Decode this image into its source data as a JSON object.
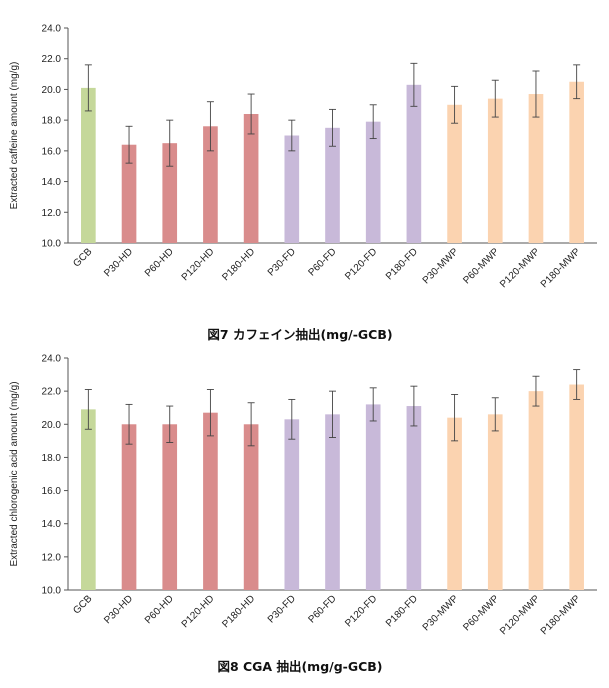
{
  "chart_data": [
    {
      "type": "bar",
      "caption": "図7 カフェイン抽出(mg/-GCB)",
      "ylabel": "Extracted caffeine amount (mg/g)",
      "ylim": [
        10,
        24
      ],
      "yticks": [
        "10.0",
        "12.0",
        "14.0",
        "16.0",
        "18.0",
        "20.0",
        "22.0",
        "24.0"
      ],
      "grid": false,
      "categories": [
        "GCB",
        "P30-HD",
        "P60-HD",
        "P120-HD",
        "P180-HD",
        "P30-FD",
        "P60-FD",
        "P120-FD",
        "P180-FD",
        "P30-MWP",
        "P60-MWP",
        "P120-MWP",
        "P180-MWP"
      ],
      "values": [
        20.1,
        16.4,
        16.5,
        17.6,
        18.4,
        17.0,
        17.5,
        17.9,
        20.3,
        19.0,
        19.4,
        19.7,
        20.5
      ],
      "errors": [
        1.5,
        1.2,
        1.5,
        1.6,
        1.3,
        1.0,
        1.2,
        1.1,
        1.4,
        1.2,
        1.2,
        1.5,
        1.1
      ],
      "colors": [
        "#c5d89a",
        "#d98c8c",
        "#d98c8c",
        "#d98c8c",
        "#d98c8c",
        "#c8b9d9",
        "#c8b9d9",
        "#c8b9d9",
        "#c8b9d9",
        "#fbd3b0",
        "#fbd3b0",
        "#fbd3b0",
        "#fbd3b0"
      ]
    },
    {
      "type": "bar",
      "caption": "図8 CGA 抽出(mg/g-GCB)",
      "ylabel": "Extracted chlorogenic acid amount (mg/g)",
      "ylim": [
        10,
        24
      ],
      "yticks": [
        "10.0",
        "12.0",
        "14.0",
        "16.0",
        "18.0",
        "20.0",
        "22.0",
        "24.0"
      ],
      "grid": false,
      "categories": [
        "GCB",
        "P30-HD",
        "P60-HD",
        "P120-HD",
        "P180-HD",
        "P30-FD",
        "P60-FD",
        "P120-FD",
        "P180-FD",
        "P30-MWP",
        "P60-MWP",
        "P120-MWP",
        "P180-MWP"
      ],
      "values": [
        20.9,
        20.0,
        20.0,
        20.7,
        20.0,
        20.3,
        20.6,
        21.2,
        21.1,
        20.4,
        20.6,
        22.0,
        22.4
      ],
      "errors": [
        1.2,
        1.2,
        1.1,
        1.4,
        1.3,
        1.2,
        1.4,
        1.0,
        1.2,
        1.4,
        1.0,
        0.9,
        0.9
      ],
      "colors": [
        "#c5d89a",
        "#d98c8c",
        "#d98c8c",
        "#d98c8c",
        "#d98c8c",
        "#c8b9d9",
        "#c8b9d9",
        "#c8b9d9",
        "#c8b9d9",
        "#fbd3b0",
        "#fbd3b0",
        "#fbd3b0",
        "#fbd3b0"
      ]
    }
  ]
}
